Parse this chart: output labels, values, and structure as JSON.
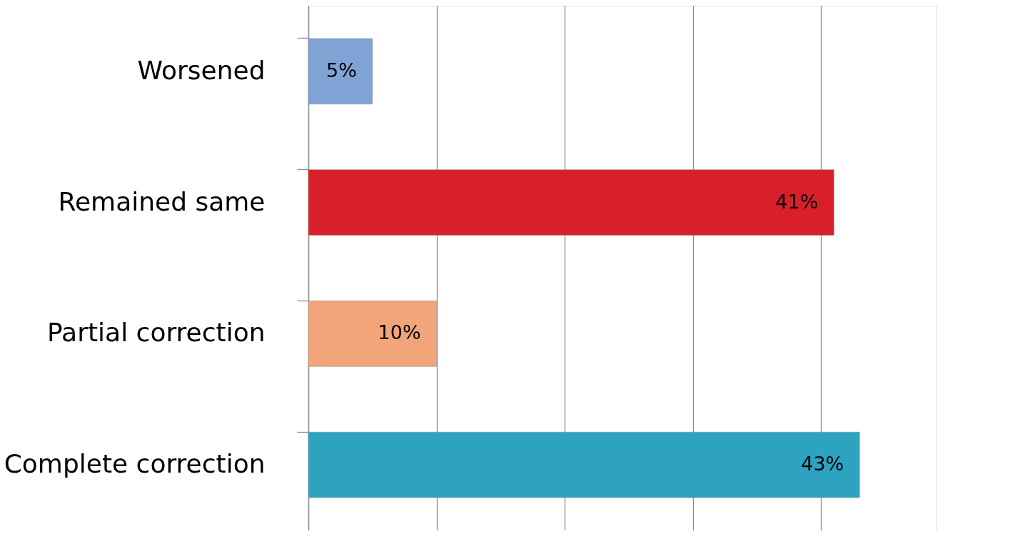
{
  "chart_data": {
    "type": "bar",
    "orientation": "horizontal",
    "categories": [
      "Worsened",
      "Remained same",
      "Partial correction",
      "Complete correction"
    ],
    "values": [
      5,
      41,
      10,
      43
    ],
    "colors": [
      "#7ea3d4",
      "#d9202a",
      "#f2a47a",
      "#2ea3bf"
    ],
    "value_labels": [
      "5%",
      "41%",
      "10%",
      "43%"
    ],
    "xlim": [
      0,
      49
    ],
    "xticks": [
      {
        "value": 0,
        "label": null
      },
      {
        "value": 10,
        "label": null
      },
      {
        "value": 20,
        "label": null
      },
      {
        "value": 30,
        "label": null
      },
      {
        "value": 40,
        "label": null
      }
    ],
    "grid": "x",
    "tick_labels": "y"
  }
}
